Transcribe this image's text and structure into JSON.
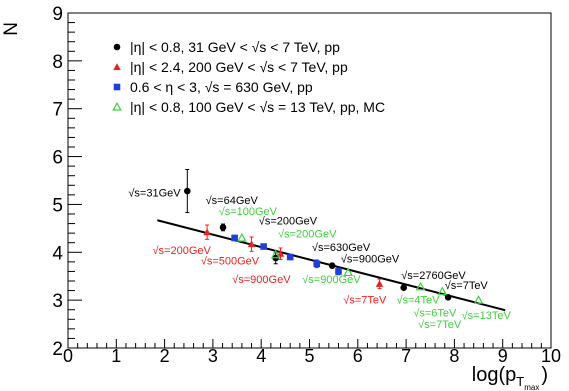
{
  "chart_data": {
    "type": "scatter",
    "xlabel": "log(p",
    "xlabel_sub": "T",
    "xlabel_subsub": "max",
    "xlabel_close": ")",
    "ylabel": "N",
    "xlim": [
      0,
      10
    ],
    "ylim": [
      2,
      9
    ],
    "x_ticks": [
      "0",
      "1",
      "2",
      "3",
      "4",
      "5",
      "6",
      "7",
      "8",
      "9",
      "10"
    ],
    "y_ticks": [
      "2",
      "3",
      "4",
      "5",
      "6",
      "7",
      "8",
      "9"
    ],
    "grid": false,
    "legend_position": "top-left",
    "colors": {
      "black": "#000000",
      "red": "#e8231f",
      "blue": "#1f3fdd",
      "green": "#3fcf3f"
    },
    "legend": [
      {
        "marker": "circle",
        "color": "#000000",
        "label": "|η| < 0.8, 31 GeV < √s < 7 TeV, pp"
      },
      {
        "marker": "triangle",
        "color": "#e8231f",
        "label": "|η| < 2.4, 200 GeV < √s < 7 TeV, pp"
      },
      {
        "marker": "square",
        "color": "#1f3fdd",
        "label": "0.6 < η < 3, √s = 630 GeV, pp"
      },
      {
        "marker": "open-triangle",
        "color": "#3fcf3f",
        "label": "|η| < 0.8, 100 GeV < √s = 13 TeV, pp, MC"
      }
    ],
    "series": [
      {
        "marker": "circle",
        "color": "#000000",
        "points": [
          {
            "x": 2.47,
            "y": 5.28,
            "err": 0.45
          },
          {
            "x": 3.21,
            "y": 4.52,
            "err": 0.07
          },
          {
            "x": 4.3,
            "y": 3.88,
            "err": 0.12
          },
          {
            "x": 5.47,
            "y": 3.72,
            "err": 0.05
          },
          {
            "x": 6.95,
            "y": 3.26,
            "err": 0.04
          },
          {
            "x": 7.87,
            "y": 3.06,
            "err": 0.03
          }
        ]
      },
      {
        "marker": "triangle",
        "color": "#e8231f",
        "points": [
          {
            "x": 2.88,
            "y": 4.42,
            "err": 0.15
          },
          {
            "x": 3.8,
            "y": 4.17,
            "err": 0.15
          },
          {
            "x": 4.4,
            "y": 3.97,
            "err": 0.12
          },
          {
            "x": 6.45,
            "y": 3.34,
            "err": 0.1
          }
        ]
      },
      {
        "marker": "square",
        "color": "#1f3fdd",
        "points": [
          {
            "x": 3.45,
            "y": 4.3,
            "err": 0.03
          },
          {
            "x": 4.05,
            "y": 4.12,
            "err": 0.03
          },
          {
            "x": 4.6,
            "y": 3.9,
            "err": 0.03
          },
          {
            "x": 5.15,
            "y": 3.76,
            "err": 0.08
          },
          {
            "x": 5.6,
            "y": 3.6,
            "err": 0.07
          }
        ]
      },
      {
        "marker": "open-triangle",
        "color": "#3fcf3f",
        "points": [
          {
            "x": 3.6,
            "y": 4.3,
            "err": 0
          },
          {
            "x": 4.3,
            "y": 3.95,
            "err": 0
          },
          {
            "x": 5.8,
            "y": 3.58,
            "err": 0
          },
          {
            "x": 7.3,
            "y": 3.28,
            "err": 0
          },
          {
            "x": 7.75,
            "y": 3.18,
            "err": 0
          },
          {
            "x": 8.5,
            "y": 3.0,
            "err": 0
          }
        ]
      }
    ],
    "fit_line": {
      "x": [
        1.85,
        9.05
      ],
      "y": [
        4.67,
        2.79
      ]
    },
    "annotations": [
      {
        "text": "√s=31GeV",
        "color": "#000000",
        "x": 1.25,
        "y": 5.17
      },
      {
        "text": "√s=64GeV",
        "color": "#000000",
        "x": 2.85,
        "y": 5.01
      },
      {
        "text": "√s=100GeV",
        "color": "#3fcf3f",
        "x": 3.12,
        "y": 4.78
      },
      {
        "text": "√s=200GeV",
        "color": "#000000",
        "x": 3.95,
        "y": 4.58
      },
      {
        "text": "√s=200GeV",
        "color": "#3fcf3f",
        "x": 4.35,
        "y": 4.31
      },
      {
        "text": "√s=630GeV",
        "color": "#000000",
        "x": 5.05,
        "y": 4.03
      },
      {
        "text": "√s=200GeV",
        "color": "#e8231f",
        "x": 1.75,
        "y": 3.96
      },
      {
        "text": "√s=500GeV",
        "color": "#e8231f",
        "x": 2.75,
        "y": 3.74
      },
      {
        "text": "√s=900GeV",
        "color": "#000000",
        "x": 5.65,
        "y": 3.79
      },
      {
        "text": "√s=900GeV",
        "color": "#e8231f",
        "x": 3.4,
        "y": 3.36
      },
      {
        "text": "√s=900GeV",
        "color": "#3fcf3f",
        "x": 4.85,
        "y": 3.36
      },
      {
        "text": "√s=2760GeV",
        "color": "#000000",
        "x": 6.9,
        "y": 3.44
      },
      {
        "text": "√s=7TeV",
        "color": "#e8231f",
        "x": 5.7,
        "y": 2.93
      },
      {
        "text": "√s=4TeV",
        "color": "#3fcf3f",
        "x": 6.8,
        "y": 2.93
      },
      {
        "text": "√s=7TeV",
        "color": "#000000",
        "x": 7.8,
        "y": 3.23
      },
      {
        "text": "√s=6TeV",
        "color": "#3fcf3f",
        "x": 7.15,
        "y": 2.66
      },
      {
        "text": "√s=7TeV",
        "color": "#3fcf3f",
        "x": 7.25,
        "y": 2.42
      },
      {
        "text": "√s=13TeV",
        "color": "#3fcf3f",
        "x": 8.15,
        "y": 2.61
      }
    ]
  }
}
